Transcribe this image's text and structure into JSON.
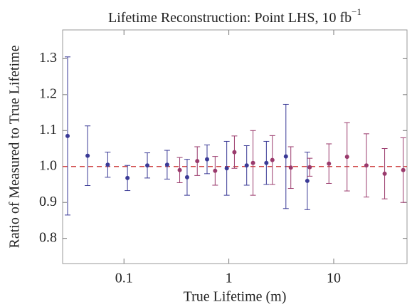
{
  "chart_data": {
    "type": "errorbar_scatter",
    "title": "Lifetime Reconstruction: Point LHS, 10 fb",
    "title_superscript": "−1",
    "xlabel": "True Lifetime (m)",
    "ylabel": "Ratio of Measured to True Lifetime",
    "xscale": "log",
    "xlim": [
      0.026,
      50
    ],
    "ylim": [
      0.73,
      1.38
    ],
    "xticks": [
      0.1,
      1,
      10
    ],
    "yticks": [
      0.8,
      0.9,
      {
        "value": 1.0,
        "label": "1.0"
      },
      1.1,
      1.2,
      1.3
    ],
    "reference_line": 1.0,
    "reference_color": "#d04848",
    "series": [
      {
        "color": "#3a3a96",
        "x": [
          0.029,
          0.045,
          0.07,
          0.108,
          0.167,
          0.258,
          0.4,
          0.62,
          0.955,
          1.48,
          2.28,
          3.5,
          5.6
        ],
        "values": [
          1.085,
          1.03,
          1.005,
          0.968,
          1.003,
          1.005,
          0.97,
          1.02,
          0.995,
          1.003,
          1.01,
          1.028,
          0.96
        ],
        "errors": [
          0.22,
          0.083,
          0.035,
          0.035,
          0.035,
          0.04,
          0.05,
          0.04,
          0.075,
          0.055,
          0.06,
          0.145,
          0.08
        ]
      },
      {
        "color": "#9a3a6c",
        "x": [
          0.34,
          0.5,
          0.74,
          1.13,
          1.7,
          2.6,
          3.9,
          5.9,
          9.0,
          13.4,
          20.5,
          30.6,
          46
        ],
        "values": [
          0.99,
          1.015,
          0.988,
          1.04,
          1.01,
          1.018,
          0.997,
          0.998,
          1.008,
          1.027,
          1.003,
          0.98,
          0.99
        ],
        "errors": [
          0.035,
          0.04,
          0.04,
          0.045,
          0.09,
          0.068,
          0.058,
          0.025,
          0.055,
          0.095,
          0.088,
          0.07,
          0.09
        ]
      }
    ]
  }
}
